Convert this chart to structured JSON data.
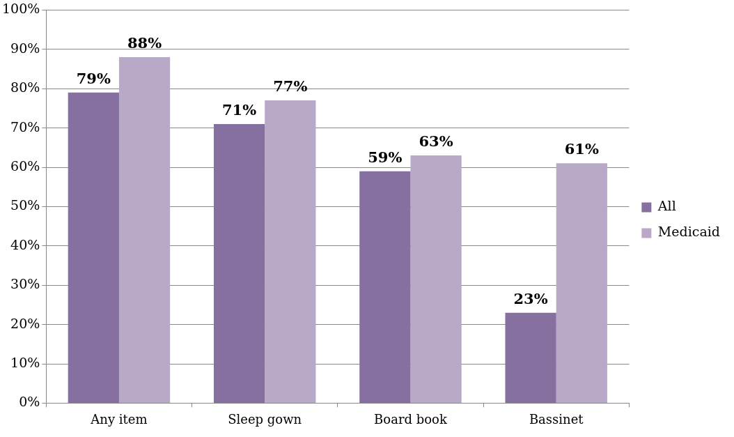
{
  "chart_data": {
    "type": "bar",
    "categories": [
      "Any item",
      "Sleep gown",
      "Board book",
      "Bassinet"
    ],
    "series": [
      {
        "name": "All",
        "color": "#8570a0",
        "values": [
          79,
          71,
          59,
          23
        ],
        "value_labels": [
          "79%",
          "71%",
          "59%",
          "23%"
        ]
      },
      {
        "name": "Medicaid",
        "color": "#b9a9c9",
        "values": [
          88,
          77,
          63,
          61
        ],
        "value_labels": [
          "88%",
          "77%",
          "63%",
          "61%"
        ]
      }
    ],
    "ylim": [
      0,
      100
    ],
    "yticks": [
      {
        "value": 0,
        "label": "0%"
      },
      {
        "value": 10,
        "label": "10%"
      },
      {
        "value": 20,
        "label": "20%"
      },
      {
        "value": 30,
        "label": "30%"
      },
      {
        "value": 40,
        "label": "40%"
      },
      {
        "value": 50,
        "label": "50%"
      },
      {
        "value": 60,
        "label": "60%"
      },
      {
        "value": 70,
        "label": "70%"
      },
      {
        "value": 80,
        "label": "80%"
      },
      {
        "value": 90,
        "label": "90%"
      },
      {
        "value": 100,
        "label": "100%"
      }
    ],
    "grid": "y",
    "legend": "right"
  }
}
